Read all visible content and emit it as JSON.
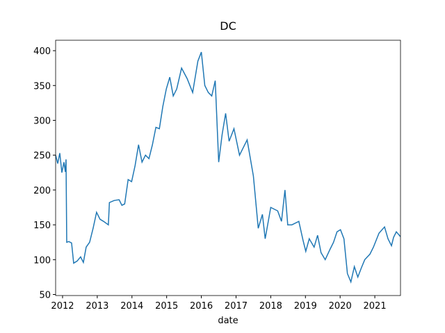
{
  "chart_data": {
    "type": "line",
    "title": "DC",
    "xlabel": "date",
    "x": [
      2011.8,
      2011.86,
      2011.92,
      2011.98,
      2012.04,
      2012.08,
      2012.1,
      2012.12,
      2012.18,
      2012.26,
      2012.32,
      2012.42,
      2012.52,
      2012.6,
      2012.68,
      2012.78,
      2012.88,
      2012.98,
      2013.08,
      2013.18,
      2013.32,
      2013.35,
      2013.49,
      2013.63,
      2013.71,
      2013.79,
      2013.89,
      2013.99,
      2014.09,
      2014.19,
      2014.29,
      2014.39,
      2014.49,
      2014.59,
      2014.69,
      2014.79,
      2014.89,
      2014.99,
      2015.09,
      2015.19,
      2015.29,
      2015.43,
      2015.59,
      2015.75,
      2015.9,
      2016.0,
      2016.1,
      2016.2,
      2016.3,
      2016.4,
      2016.5,
      2016.6,
      2016.7,
      2016.8,
      2016.94,
      2017.1,
      2017.32,
      2017.5,
      2017.64,
      2017.76,
      2017.84,
      2018.0,
      2018.2,
      2018.31,
      2018.41,
      2018.49,
      2018.61,
      2018.81,
      2018.93,
      2019.01,
      2019.11,
      2019.25,
      2019.35,
      2019.45,
      2019.57,
      2019.71,
      2019.81,
      2019.91,
      2020.01,
      2020.11,
      2020.21,
      2020.31,
      2020.41,
      2020.51,
      2020.61,
      2020.71,
      2020.86,
      2020.96,
      2021.12,
      2021.28,
      2021.38,
      2021.48,
      2021.54,
      2021.62,
      2021.74
    ],
    "series": [
      {
        "name": "DC",
        "color": "#1f77b4",
        "values": [
          250,
          238,
          253,
          225,
          240,
          226,
          244,
          125,
          126,
          124,
          95,
          98,
          104,
          96,
          118,
          125,
          145,
          168,
          158,
          155,
          150,
          182,
          185,
          186,
          178,
          180,
          215,
          212,
          235,
          265,
          240,
          250,
          245,
          265,
          290,
          288,
          320,
          345,
          362,
          335,
          345,
          375,
          360,
          340,
          385,
          398,
          350,
          340,
          335,
          357,
          240,
          280,
          310,
          270,
          288,
          250,
          272,
          220,
          145,
          165,
          130,
          175,
          170,
          155,
          200,
          150,
          150,
          155,
          128,
          112,
          130,
          118,
          135,
          110,
          100,
          115,
          125,
          140,
          143,
          130,
          80,
          68,
          90,
          75,
          88,
          100,
          108,
          118,
          138,
          147,
          130,
          120,
          132,
          140,
          133
        ]
      }
    ],
    "xlim": [
      2011.8,
      2021.74
    ],
    "xticks": [
      2012,
      2013,
      2014,
      2015,
      2016,
      2017,
      2018,
      2019,
      2020,
      2021
    ],
    "ylim": [
      48.5,
      415
    ],
    "yticks": [
      50,
      100,
      150,
      200,
      250,
      300,
      350,
      400
    ]
  }
}
